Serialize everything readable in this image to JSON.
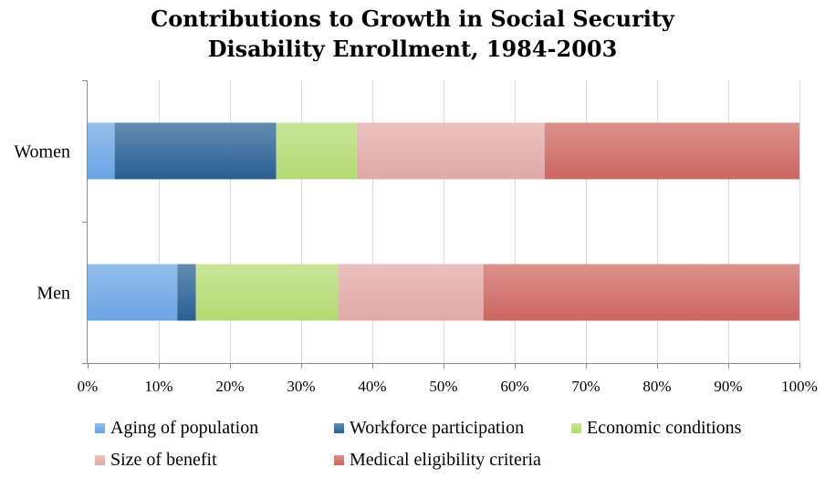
{
  "chart_data": {
    "type": "bar",
    "orientation": "horizontal",
    "stacked": true,
    "title_lines": [
      "Contributions to Growth in Social Security",
      "Disability Enrollment, 1984-2003"
    ],
    "categories": [
      "Women",
      "Men"
    ],
    "xlim": [
      0,
      100
    ],
    "x_ticks": [
      "0%",
      "10%",
      "20%",
      "30%",
      "40%",
      "50%",
      "60%",
      "70%",
      "80%",
      "90%",
      "100%"
    ],
    "grid": "vertical",
    "legend_position": "bottom",
    "series": [
      {
        "name": "Aging of population",
        "color": "#6aa5e3",
        "values": [
          3.8,
          12.6
        ]
      },
      {
        "name": "Workforce participation",
        "color": "#285f93",
        "values": [
          22.7,
          2.6
        ]
      },
      {
        "name": "Economic conditions",
        "color": "#b3db72",
        "values": [
          11.3,
          20.0
        ]
      },
      {
        "name": "Size of benefit",
        "color": "#e1a9a6",
        "values": [
          26.4,
          20.4
        ]
      },
      {
        "name": "Medical eligibility criteria",
        "color": "#cc6660",
        "values": [
          35.8,
          44.4
        ]
      }
    ]
  }
}
